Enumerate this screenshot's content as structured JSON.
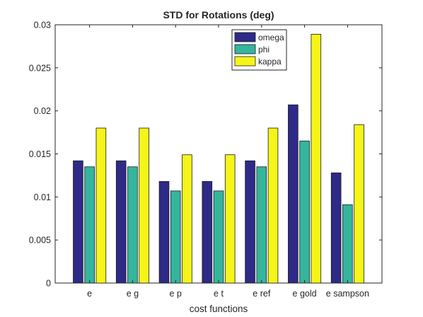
{
  "chart_data": {
    "type": "bar",
    "title": "STD for Rotations (deg)",
    "xlabel": "cost functions",
    "ylabel": "",
    "categories": [
      "e",
      "e g",
      "e p",
      "e t",
      "e ref",
      "e gold",
      "e sampson"
    ],
    "series": [
      {
        "name": "omega",
        "color": "#2e2a87",
        "values": [
          0.0142,
          0.0142,
          0.0118,
          0.0118,
          0.0142,
          0.0207,
          0.0128
        ]
      },
      {
        "name": "phi",
        "color": "#35b59d",
        "values": [
          0.0135,
          0.0135,
          0.0107,
          0.0107,
          0.0135,
          0.0165,
          0.0091
        ]
      },
      {
        "name": "kappa",
        "color": "#f5f51a",
        "values": [
          0.018,
          0.018,
          0.0149,
          0.0149,
          0.018,
          0.0289,
          0.0184
        ]
      }
    ],
    "ylim": [
      0,
      0.03
    ],
    "yticks": [
      0,
      0.005,
      0.01,
      0.015,
      0.02,
      0.025,
      0.03
    ],
    "ytick_labels": [
      "0",
      "0.005",
      "0.01",
      "0.015",
      "0.02",
      "0.025",
      "0.03"
    ],
    "grid": false,
    "legend_position": "top-right-inside"
  }
}
